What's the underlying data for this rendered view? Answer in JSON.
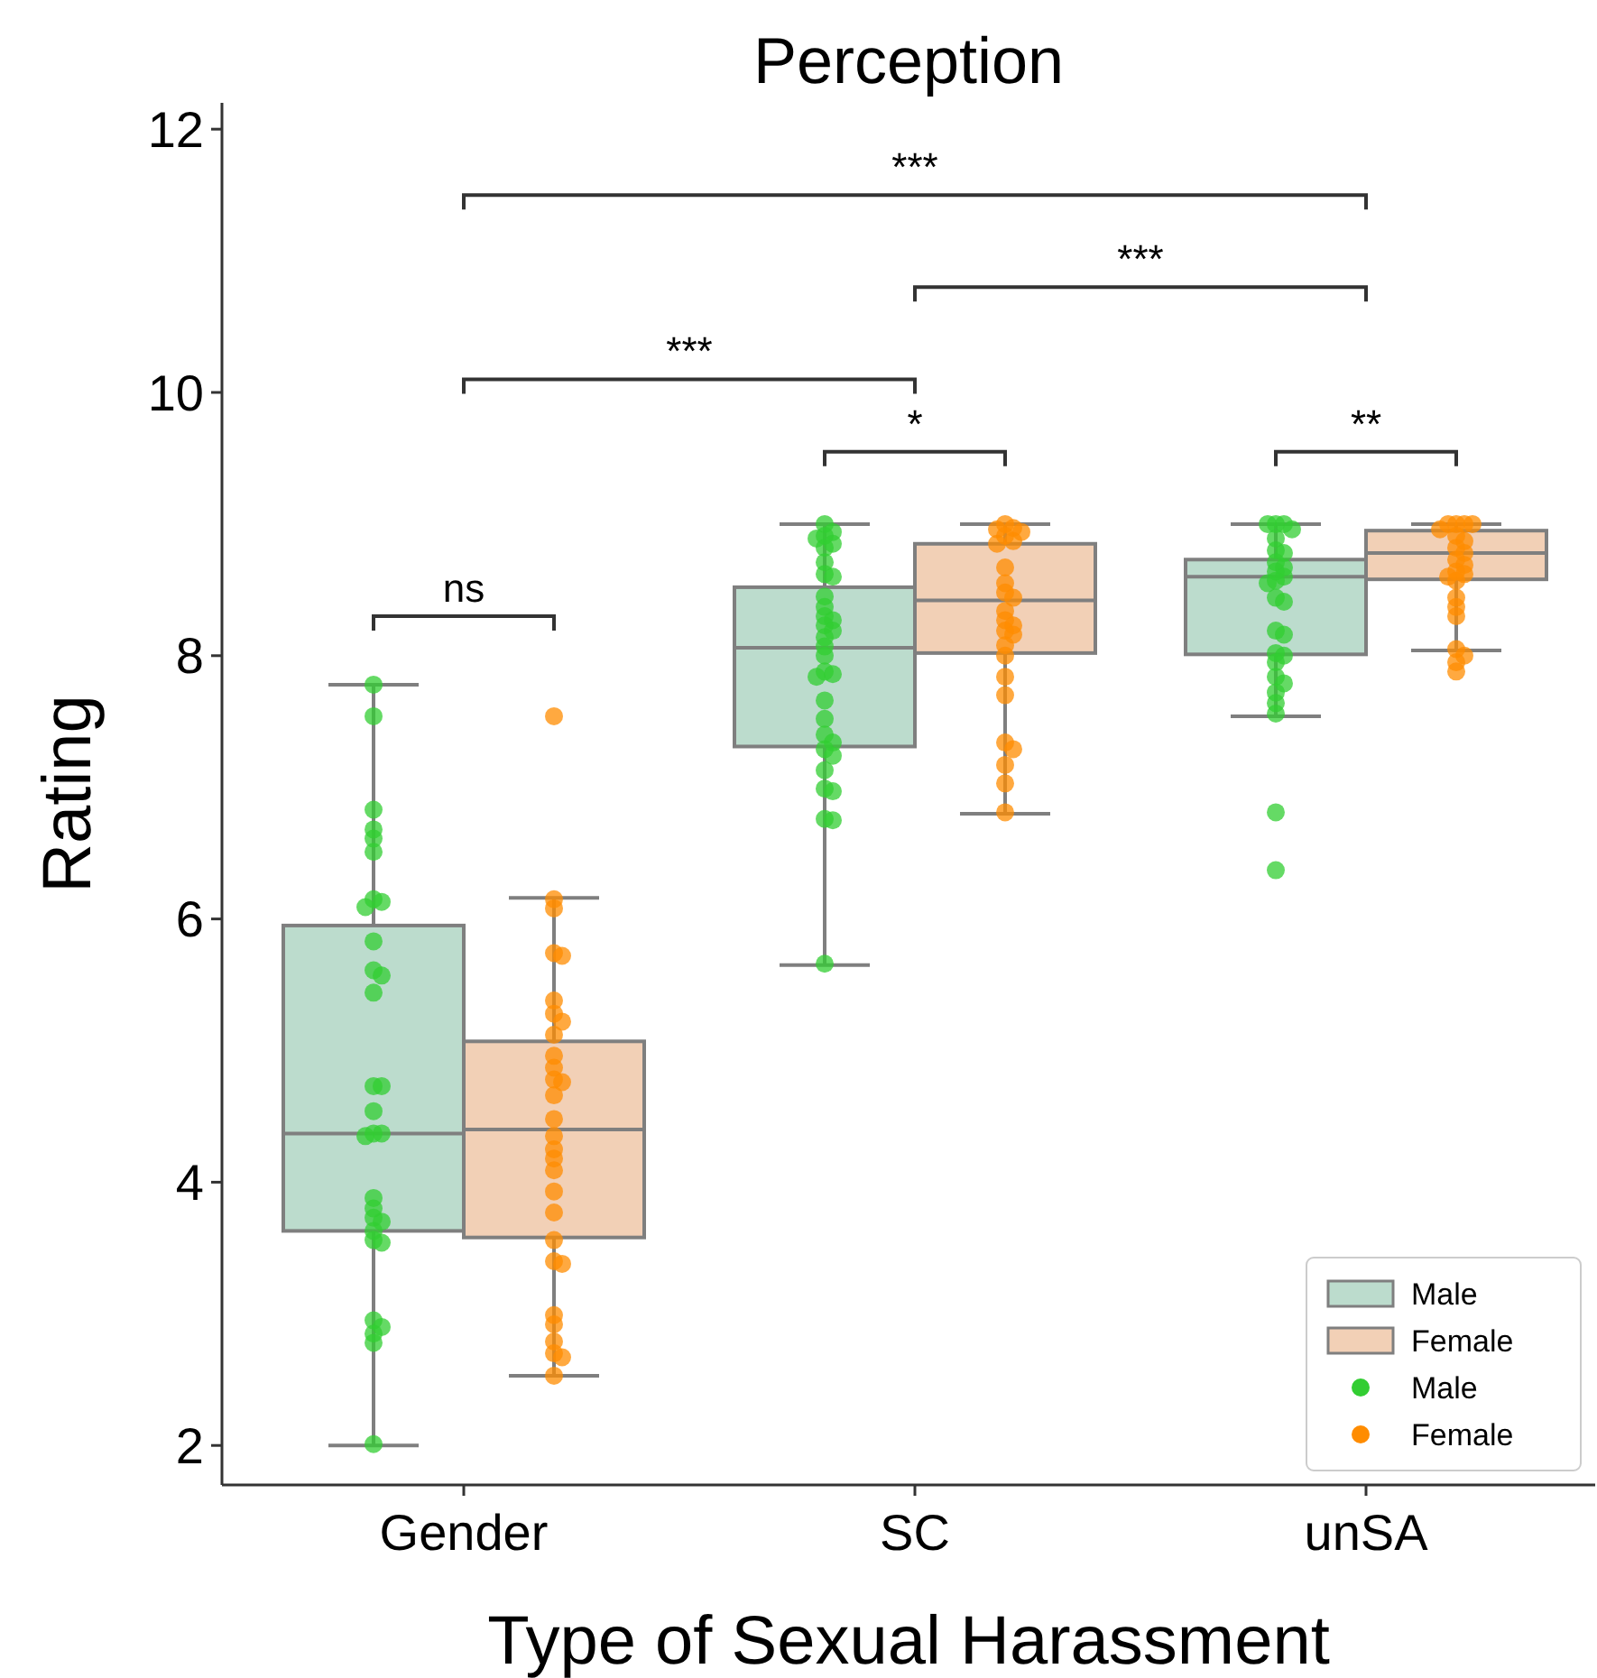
{
  "chart_data": {
    "type": "box",
    "title": "Perception",
    "xlabel": "Type of Sexual Harassment",
    "ylabel": "Rating",
    "categories": [
      "Gender",
      "SC",
      "unSA"
    ],
    "ylim": [
      1.7,
      12.2
    ],
    "yticks": [
      2,
      4,
      6,
      8,
      10,
      12
    ],
    "grid": false,
    "legend": "bottom right",
    "annotations": [
      "***",
      "***",
      "***",
      "*",
      "**",
      "ns"
    ],
    "series": [
      {
        "type": "box",
        "name": "Male",
        "color": "#bcdccd",
        "boxes": [
          {
            "low": 2.0,
            "q1": 3.63,
            "median": 4.37,
            "q3": 5.95,
            "high": 7.78
          },
          {
            "low": 5.65,
            "q1": 7.31,
            "median": 8.06,
            "q3": 8.52,
            "high": 9.0
          },
          {
            "low": 7.54,
            "q1": 8.01,
            "median": 8.6,
            "q3": 8.73,
            "high": 9.0
          }
        ]
      },
      {
        "type": "box",
        "name": "Female",
        "color": "#f2d0b6",
        "boxes": [
          {
            "low": 2.53,
            "q1": 3.58,
            "median": 4.4,
            "q3": 5.07,
            "high": 6.16
          },
          {
            "low": 6.8,
            "q1": 8.02,
            "median": 8.42,
            "q3": 8.85,
            "high": 9.0
          },
          {
            "low": 8.04,
            "q1": 8.58,
            "median": 8.78,
            "q3": 8.95,
            "high": 9.0
          }
        ]
      },
      {
        "type": "scatter",
        "name": "Male",
        "color": "#32cd32",
        "x": [
          "Gender",
          "Gender",
          "Gender",
          "Gender",
          "Gender",
          "Gender",
          "Gender",
          "Gender",
          "Gender",
          "Gender",
          "Gender",
          "Gender",
          "Gender",
          "Gender",
          "Gender",
          "Gender",
          "Gender",
          "Gender",
          "Gender",
          "Gender",
          "Gender",
          "Gender",
          "Gender",
          "Gender",
          "Gender",
          "Gender",
          "Gender",
          "Gender",
          "Gender",
          "Gender",
          "Gender",
          "SC",
          "SC",
          "SC",
          "SC",
          "SC",
          "SC",
          "SC",
          "SC",
          "SC",
          "SC",
          "SC",
          "SC",
          "SC",
          "SC",
          "SC",
          "SC",
          "SC",
          "SC",
          "SC",
          "SC",
          "SC",
          "SC",
          "SC",
          "SC",
          "SC",
          "SC",
          "SC",
          "SC",
          "SC",
          "SC",
          "SC",
          "SC",
          "SC",
          "unSA",
          "unSA",
          "unSA",
          "unSA",
          "unSA",
          "unSA",
          "unSA",
          "unSA",
          "unSA",
          "unSA",
          "unSA",
          "unSA",
          "unSA",
          "unSA",
          "unSA",
          "unSA",
          "unSA",
          "unSA",
          "unSA",
          "unSA",
          "unSA",
          "unSA",
          "unSA",
          "unSA",
          "unSA",
          "unSA",
          "unSA"
        ],
        "values": [
          7.78,
          7.54,
          6.83,
          6.68,
          6.61,
          6.51,
          6.15,
          6.13,
          6.09,
          5.83,
          5.61,
          5.57,
          5.44,
          4.73,
          4.73,
          4.54,
          4.37,
          4.37,
          4.35,
          3.88,
          3.8,
          3.73,
          3.7,
          3.63,
          3.56,
          3.54,
          2.95,
          2.9,
          2.85,
          2.78,
          2.01,
          9.0,
          8.94,
          8.91,
          8.89,
          8.85,
          8.82,
          8.71,
          8.62,
          8.6,
          8.45,
          8.37,
          8.3,
          8.27,
          8.23,
          8.19,
          8.14,
          8.07,
          8.0,
          7.88,
          7.86,
          7.84,
          7.66,
          7.52,
          7.4,
          7.34,
          7.29,
          7.24,
          7.13,
          6.99,
          6.97,
          6.76,
          6.75,
          5.66,
          9.0,
          9.0,
          9.0,
          8.96,
          8.89,
          8.8,
          8.78,
          8.71,
          8.67,
          8.64,
          8.6,
          8.57,
          8.55,
          8.44,
          8.41,
          8.19,
          8.16,
          8.02,
          8.0,
          7.95,
          7.84,
          7.79,
          7.72,
          7.64,
          7.56,
          6.81,
          6.37
        ]
      },
      {
        "type": "scatter",
        "name": "Female",
        "color": "#ff8c00",
        "x": [
          "Gender",
          "Gender",
          "Gender",
          "Gender",
          "Gender",
          "Gender",
          "Gender",
          "Gender",
          "Gender",
          "Gender",
          "Gender",
          "Gender",
          "Gender",
          "Gender",
          "Gender",
          "Gender",
          "Gender",
          "Gender",
          "Gender",
          "Gender",
          "Gender",
          "Gender",
          "Gender",
          "Gender",
          "Gender",
          "Gender",
          "Gender",
          "Gender",
          "Gender",
          "Gender",
          "SC",
          "SC",
          "SC",
          "SC",
          "SC",
          "SC",
          "SC",
          "SC",
          "SC",
          "SC",
          "SC",
          "SC",
          "SC",
          "SC",
          "SC",
          "SC",
          "SC",
          "SC",
          "SC",
          "SC",
          "SC",
          "SC",
          "SC",
          "SC",
          "SC",
          "unSA",
          "unSA",
          "unSA",
          "unSA",
          "unSA",
          "unSA",
          "unSA",
          "unSA",
          "unSA",
          "unSA",
          "unSA",
          "unSA",
          "unSA",
          "unSA",
          "unSA",
          "unSA",
          "unSA",
          "unSA",
          "unSA",
          "unSA",
          "unSA",
          "unSA"
        ],
        "values": [
          7.54,
          6.15,
          6.08,
          5.74,
          5.72,
          5.38,
          5.28,
          5.22,
          5.12,
          4.96,
          4.87,
          4.78,
          4.76,
          4.66,
          4.48,
          4.35,
          4.25,
          4.18,
          4.09,
          3.93,
          3.77,
          3.56,
          3.4,
          3.38,
          2.99,
          2.92,
          2.79,
          2.7,
          2.67,
          2.53,
          9.0,
          8.97,
          8.96,
          8.94,
          8.91,
          8.87,
          8.85,
          8.67,
          8.55,
          8.48,
          8.44,
          8.34,
          8.27,
          8.23,
          8.19,
          8.16,
          8.08,
          8.0,
          7.84,
          7.7,
          7.34,
          7.29,
          7.17,
          7.03,
          6.81,
          9.0,
          9.0,
          9.0,
          9.0,
          8.96,
          8.91,
          8.87,
          8.82,
          8.78,
          8.73,
          8.69,
          8.64,
          8.62,
          8.6,
          8.57,
          8.44,
          8.37,
          8.3,
          8.05,
          8.0,
          7.95,
          7.88
        ]
      }
    ]
  }
}
